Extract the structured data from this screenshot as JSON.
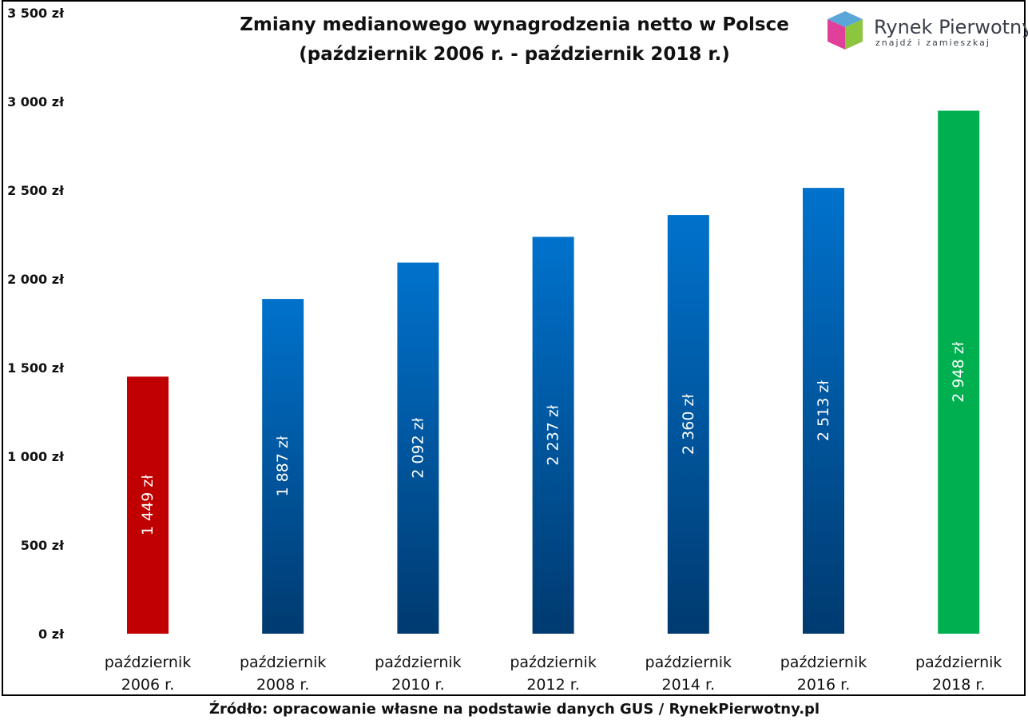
{
  "chart_data": {
    "type": "bar",
    "title": "Zmiany medianowego wynagrodzenia netto w Polsce",
    "subtitle": "(październik 2006 r. - październik 2018 r.)",
    "categories": [
      [
        "październik",
        "2006 r."
      ],
      [
        "październik",
        "2008 r."
      ],
      [
        "październik",
        "2010 r."
      ],
      [
        "październik",
        "2012 r."
      ],
      [
        "październik",
        "2014 r."
      ],
      [
        "październik",
        "2016 r."
      ],
      [
        "październik",
        "2018 r."
      ]
    ],
    "values": [
      1449,
      1887,
      2092,
      2237,
      2360,
      2513,
      2948
    ],
    "data_labels": [
      "1 449 zł",
      "1 887 zł",
      "2 092 zł",
      "2 237 zł",
      "2 360 zł",
      "2 513 zł",
      "2 948 zł"
    ],
    "bar_colors": [
      "#C00000",
      "gradient-blue",
      "gradient-blue",
      "gradient-blue",
      "gradient-blue",
      "gradient-blue",
      "#00B050"
    ],
    "gradient_blue": [
      "#0072CC",
      "#003A70"
    ],
    "ylim": [
      0,
      3500
    ],
    "yticks": [
      0,
      500,
      1000,
      1500,
      2000,
      2500,
      3000,
      3500
    ],
    "ytick_labels": [
      "0 zł",
      "500 zł",
      "1 000 zł",
      "1 500 zł",
      "2 000 zł",
      "2 500 zł",
      "3 000 zł",
      "3 500 zł"
    ],
    "grid": false,
    "legend": "none"
  },
  "logo": {
    "name": "Rynek Pierwotny",
    "tagline": "znajdź i zamieszkaj"
  },
  "source": "Źródło: opracowanie własne na podstawie danych GUS / RynekPierwotny.pl"
}
